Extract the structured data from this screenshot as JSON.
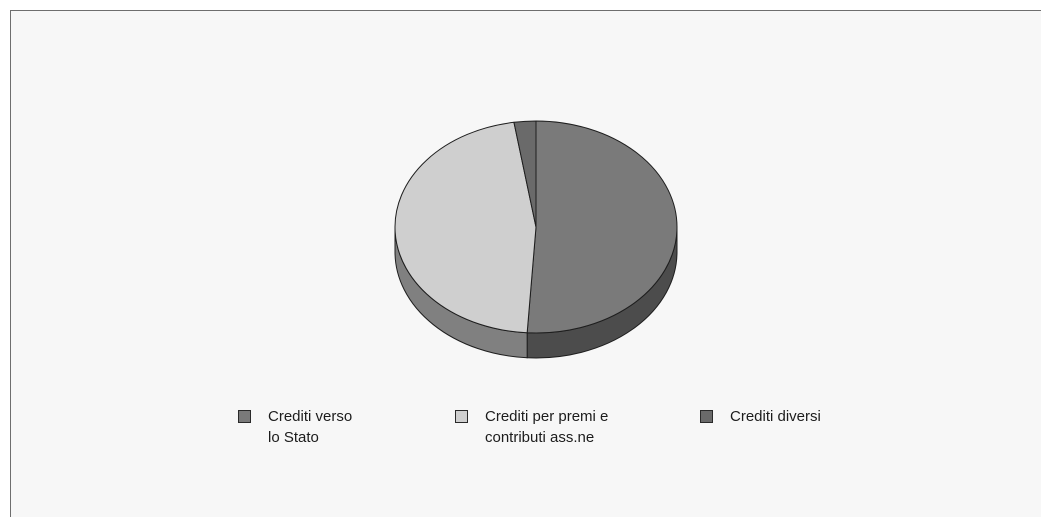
{
  "chart_data": {
    "type": "pie",
    "title": "",
    "legend_position": "bottom",
    "slices": [
      {
        "label": "Crediti verso\nlo Stato",
        "value": 51,
        "color": "#7a7a7a"
      },
      {
        "label": "Crediti per premi e\ncontributi ass.ne",
        "value": 46.5,
        "color": "#cfcfcf"
      },
      {
        "label": "Crediti diversi",
        "value": 2.5,
        "color": "#6a6a6a"
      }
    ]
  }
}
